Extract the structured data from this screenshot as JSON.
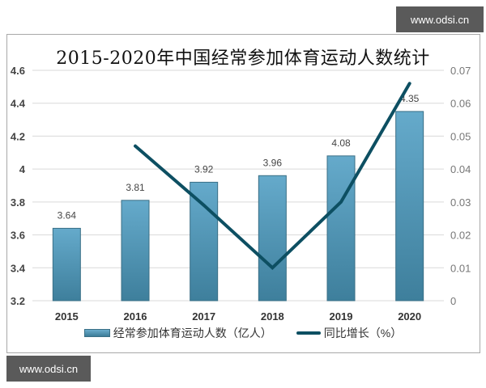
{
  "watermark": {
    "top": "www.odsi.cn",
    "bottom": "www.odsi.cn"
  },
  "chart_data": {
    "type": "bar+line",
    "title": "2015-2020年中国经常参加体育运动人数统计",
    "categories": [
      "2015",
      "2016",
      "2017",
      "2018",
      "2019",
      "2020"
    ],
    "series": [
      {
        "name": "经常参加体育运动人数（亿人）",
        "type": "bar",
        "axis": "left",
        "values": [
          3.64,
          3.81,
          3.92,
          3.96,
          4.08,
          4.35
        ],
        "color": "#5a9fc2"
      },
      {
        "name": "同比增长（%）",
        "type": "line",
        "axis": "right",
        "values": [
          null,
          0.047,
          0.029,
          0.01,
          0.03,
          0.066
        ],
        "color": "#0d4f62"
      }
    ],
    "left_axis": {
      "ticks": [
        "4.6",
        "4.4",
        "4.2",
        "4",
        "3.8",
        "3.6",
        "3.4",
        "3.2"
      ],
      "ylim": [
        3.2,
        4.6
      ]
    },
    "right_axis": {
      "ticks": [
        "0.07",
        "0.06",
        "0.05",
        "0.04",
        "0.03",
        "0.02",
        "0.01",
        "0"
      ],
      "ylim": [
        0,
        0.07
      ]
    },
    "data_labels": [
      "3.64",
      "3.81",
      "3.92",
      "3.96",
      "4.08",
      "4.35"
    ],
    "grid": true,
    "legend_position": "bottom"
  },
  "legend": {
    "bar_label": "经常参加体育运动人数（亿人）",
    "line_label": "同比增长（%）"
  }
}
